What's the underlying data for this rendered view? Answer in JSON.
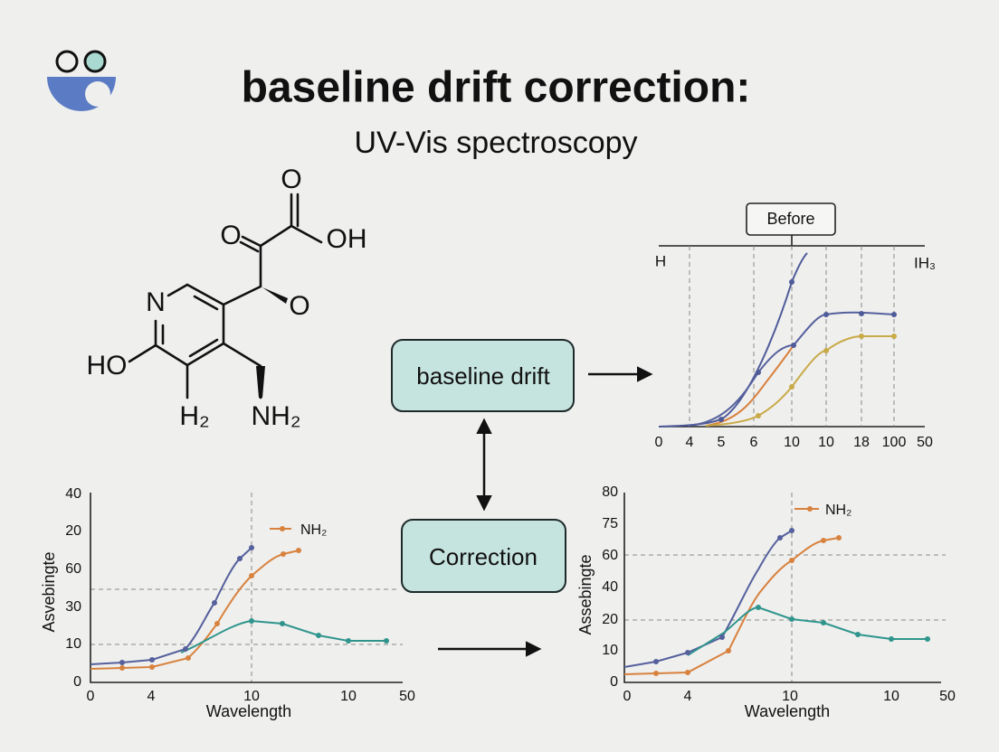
{
  "header": {
    "title": "baseline drift correction:",
    "subtitle": "UV-Vis spectroscopy"
  },
  "molecule": {
    "labels": [
      "O",
      "O",
      "OH",
      "N",
      "O",
      "HO",
      "H₂",
      "NH₂"
    ]
  },
  "nodes": [
    {
      "label": "baseline drift"
    },
    {
      "label": "Correction"
    }
  ],
  "before_chart": {
    "label": "Before",
    "left_label": "H",
    "right_label": "IH₃",
    "x_ticks": [
      "0",
      "4",
      "5",
      "6",
      "10",
      "10",
      "18",
      "100",
      "50"
    ]
  },
  "left_chart": {
    "y_label": "Asvebingte",
    "x_label": "Wavelength",
    "legend": "NH₂",
    "y_ticks": [
      "40",
      "20",
      "60",
      "30",
      "10",
      "0"
    ],
    "x_ticks": [
      "0",
      "4",
      "10",
      "10",
      "50"
    ]
  },
  "right_chart": {
    "y_label": "Assebingte",
    "x_label": "Wavelength",
    "legend": "NH₂",
    "y_ticks": [
      "80",
      "75",
      "60",
      "40",
      "20",
      "10",
      "0"
    ],
    "x_ticks": [
      "0",
      "4",
      "10",
      "10",
      "50"
    ]
  }
}
